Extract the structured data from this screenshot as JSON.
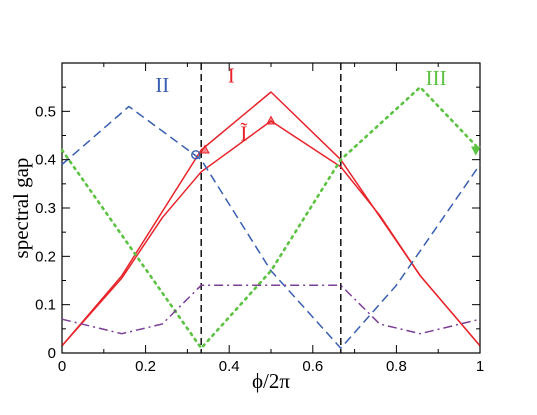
{
  "chart_data": {
    "type": "line",
    "xlabel": "ϕ/2π",
    "ylabel": "spectral gap",
    "xlim": [
      0,
      1
    ],
    "ylim": [
      0,
      0.6
    ],
    "x_ticks": [
      0,
      0.2,
      0.4,
      0.6,
      0.8,
      1
    ],
    "y_ticks": [
      0,
      0.1,
      0.2,
      0.3,
      0.4,
      0.5
    ],
    "x_tick_labels": [
      "0",
      "0.2",
      "0.4",
      "0.6",
      "0.8",
      "1"
    ],
    "y_tick_labels": [
      "0",
      "0.1",
      "0.2",
      "0.3",
      "0.4",
      "0.5"
    ],
    "grid": false,
    "vlines": [
      0.333,
      0.667
    ],
    "series": [
      {
        "name": "I",
        "color": "#e8232a",
        "style": "solid",
        "x": [
          0,
          0.143,
          0.333,
          0.5,
          0.667,
          0.857,
          1
        ],
        "y": [
          0.015,
          0.16,
          0.42,
          0.54,
          0.4,
          0.16,
          0.015
        ]
      },
      {
        "name": "Ĩ",
        "color": "#e8232a",
        "style": "solid",
        "x": [
          0,
          0.143,
          0.24,
          0.333,
          0.5,
          0.667,
          0.76,
          0.857,
          1
        ],
        "y": [
          0.015,
          0.155,
          0.28,
          0.375,
          0.48,
          0.385,
          0.285,
          0.16,
          0.015
        ]
      },
      {
        "name": "II",
        "color": "#3a5fb0",
        "style": "dashed",
        "x": [
          0,
          0.16,
          0.333,
          0.5,
          0.667,
          0.8,
          1
        ],
        "y": [
          0.39,
          0.51,
          0.4,
          0.17,
          0.01,
          0.14,
          0.39
        ]
      },
      {
        "name": "III",
        "color": "#5cc242",
        "style": "dotted",
        "x": [
          0,
          0.333,
          0.5,
          0.667,
          0.857,
          1
        ],
        "y": [
          0.42,
          0.01,
          0.17,
          0.4,
          0.55,
          0.42
        ]
      },
      {
        "name": "",
        "color": "#7b3f95",
        "style": "dashdot",
        "x": [
          0,
          0.143,
          0.24,
          0.333,
          0.667,
          0.76,
          0.857,
          1
        ],
        "y": [
          0.07,
          0.04,
          0.06,
          0.14,
          0.14,
          0.06,
          0.04,
          0.07
        ]
      }
    ],
    "markers": [
      {
        "shape": "circle",
        "color": "#3a5fb0",
        "x": 0.32,
        "y": 0.41
      },
      {
        "shape": "triangle-up",
        "color": "#e8232a",
        "x": 0.342,
        "y": 0.42
      },
      {
        "shape": "triangle-up",
        "color": "#e8232a",
        "x": 0.5,
        "y": 0.48
      },
      {
        "shape": "triangle-down",
        "color": "#5cc242",
        "x": 0.99,
        "y": 0.42
      }
    ],
    "annotations": [
      {
        "text": "II",
        "color": "#3a5fb0",
        "x": 0.24,
        "y": 0.54
      },
      {
        "text": "I",
        "color": "#e8232a",
        "x": 0.405,
        "y": 0.56
      },
      {
        "text": "Ĩ",
        "color": "#e8232a",
        "x": 0.435,
        "y": 0.44
      },
      {
        "text": "III",
        "color": "#5cc242",
        "x": 0.895,
        "y": 0.555
      }
    ]
  }
}
